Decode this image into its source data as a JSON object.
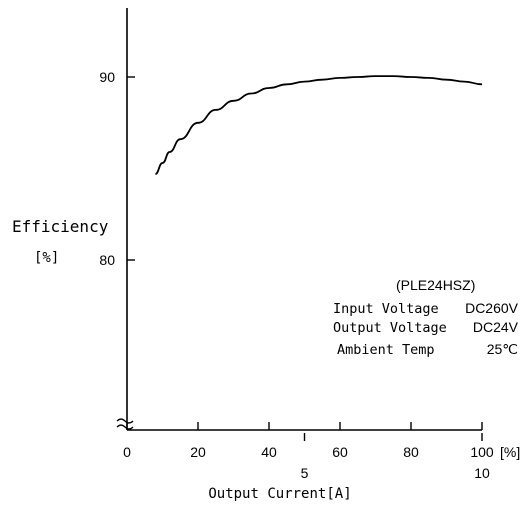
{
  "chart_data": {
    "type": "line",
    "ylabel_lines": [
      "Efficiency",
      "[%]"
    ],
    "xlabel": "Output Current[A]",
    "x_unit_label": "[%]",
    "y_range": [
      76,
      94
    ],
    "y_ticks": [
      80,
      90
    ],
    "y_tick_labels": [
      "80",
      "90"
    ],
    "x_range": [
      0,
      100
    ],
    "x_ticks": [
      0,
      20,
      40,
      60,
      80,
      100
    ],
    "x_tick_labels": [
      "0",
      "20",
      "40",
      "60",
      "80",
      "100"
    ],
    "x_secondary_ticks": [
      50,
      100
    ],
    "x_secondary_tick_labels": [
      "5",
      "10"
    ],
    "axis_break": true,
    "grid": false,
    "series": [
      {
        "x": [
          8,
          10,
          12,
          15,
          20,
          25,
          30,
          35,
          40,
          45,
          50,
          55,
          60,
          65,
          70,
          75,
          80,
          85,
          90,
          95,
          100
        ],
        "y": [
          84.7,
          85.3,
          85.9,
          86.6,
          87.5,
          88.2,
          88.7,
          89.1,
          89.4,
          89.6,
          89.75,
          89.85,
          89.95,
          90.0,
          90.05,
          90.05,
          90.0,
          89.95,
          89.85,
          89.75,
          89.6
        ]
      }
    ],
    "annotation": {
      "model": "(PLE24HSZ)",
      "rows": [
        {
          "label": "Input Voltage",
          "value": "DC260V"
        },
        {
          "label": "Output Voltage",
          "value": "DC24V"
        },
        {
          "label": "Ambient Temp",
          "value": "25℃"
        }
      ]
    }
  }
}
